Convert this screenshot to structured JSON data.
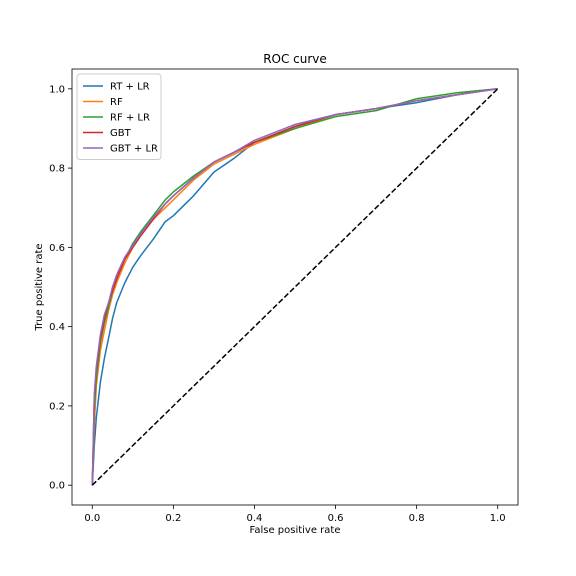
{
  "chart_data": {
    "type": "line",
    "title": "ROC curve",
    "xlabel": "False positive rate",
    "ylabel": "True positive rate",
    "xlim": [
      -0.05,
      1.05
    ],
    "ylim": [
      -0.05,
      1.05
    ],
    "xticks": [
      0.0,
      0.2,
      0.4,
      0.6,
      0.8,
      1.0
    ],
    "yticks": [
      0.0,
      0.2,
      0.4,
      0.6,
      0.8,
      1.0
    ],
    "xtick_labels": [
      "0.0",
      "0.2",
      "0.4",
      "0.6",
      "0.8",
      "1.0"
    ],
    "ytick_labels": [
      "0.0",
      "0.2",
      "0.4",
      "0.6",
      "0.8",
      "1.0"
    ],
    "grid": false,
    "legend_position": "top-left",
    "series": [
      {
        "name": "RT + LR",
        "color": "#1f77b4",
        "x": [
          0.0,
          0.005,
          0.01,
          0.02,
          0.03,
          0.04,
          0.05,
          0.06,
          0.08,
          0.1,
          0.12,
          0.15,
          0.18,
          0.2,
          0.25,
          0.3,
          0.35,
          0.4,
          0.5,
          0.6,
          0.7,
          0.8,
          0.9,
          1.0
        ],
        "y": [
          0.0,
          0.1,
          0.17,
          0.26,
          0.32,
          0.37,
          0.42,
          0.46,
          0.51,
          0.55,
          0.58,
          0.62,
          0.665,
          0.68,
          0.73,
          0.79,
          0.825,
          0.865,
          0.905,
          0.935,
          0.95,
          0.965,
          0.985,
          1.0
        ]
      },
      {
        "name": "RF",
        "color": "#ff7f0e",
        "x": [
          0.0,
          0.005,
          0.01,
          0.02,
          0.03,
          0.04,
          0.05,
          0.06,
          0.08,
          0.1,
          0.12,
          0.15,
          0.18,
          0.2,
          0.25,
          0.3,
          0.35,
          0.4,
          0.5,
          0.6,
          0.7,
          0.8,
          0.9,
          1.0
        ],
        "y": [
          0.0,
          0.15,
          0.25,
          0.34,
          0.39,
          0.44,
          0.48,
          0.51,
          0.56,
          0.6,
          0.63,
          0.67,
          0.7,
          0.72,
          0.77,
          0.81,
          0.835,
          0.86,
          0.9,
          0.935,
          0.95,
          0.97,
          0.985,
          1.0
        ]
      },
      {
        "name": "RF + LR",
        "color": "#2ca02c",
        "x": [
          0.0,
          0.005,
          0.01,
          0.02,
          0.03,
          0.04,
          0.05,
          0.06,
          0.08,
          0.1,
          0.12,
          0.15,
          0.18,
          0.2,
          0.25,
          0.3,
          0.35,
          0.4,
          0.5,
          0.6,
          0.7,
          0.8,
          0.9,
          1.0
        ],
        "y": [
          0.0,
          0.19,
          0.27,
          0.36,
          0.41,
          0.45,
          0.49,
          0.52,
          0.57,
          0.61,
          0.64,
          0.68,
          0.72,
          0.74,
          0.78,
          0.815,
          0.84,
          0.865,
          0.9,
          0.93,
          0.945,
          0.975,
          0.99,
          1.0
        ]
      },
      {
        "name": "GBT",
        "color": "#d62728",
        "x": [
          0.0,
          0.005,
          0.01,
          0.02,
          0.03,
          0.04,
          0.05,
          0.06,
          0.08,
          0.1,
          0.12,
          0.15,
          0.18,
          0.2,
          0.25,
          0.3,
          0.35,
          0.4,
          0.5,
          0.6,
          0.7,
          0.8,
          0.9,
          1.0
        ],
        "y": [
          0.0,
          0.22,
          0.29,
          0.37,
          0.42,
          0.46,
          0.49,
          0.52,
          0.57,
          0.6,
          0.63,
          0.67,
          0.71,
          0.73,
          0.775,
          0.815,
          0.84,
          0.865,
          0.905,
          0.935,
          0.95,
          0.97,
          0.985,
          1.0
        ]
      },
      {
        "name": "GBT + LR",
        "color": "#9467bd",
        "x": [
          0.0,
          0.005,
          0.01,
          0.02,
          0.03,
          0.04,
          0.05,
          0.06,
          0.08,
          0.1,
          0.12,
          0.15,
          0.18,
          0.2,
          0.25,
          0.3,
          0.35,
          0.4,
          0.5,
          0.6,
          0.7,
          0.8,
          0.9,
          1.0
        ],
        "y": [
          0.0,
          0.23,
          0.3,
          0.38,
          0.43,
          0.46,
          0.5,
          0.53,
          0.575,
          0.605,
          0.635,
          0.675,
          0.71,
          0.73,
          0.775,
          0.815,
          0.84,
          0.87,
          0.91,
          0.935,
          0.95,
          0.97,
          0.985,
          1.0
        ]
      }
    ],
    "reference_line": {
      "color": "#000000",
      "style": "dashed",
      "x": [
        0.0,
        1.0
      ],
      "y": [
        0.0,
        1.0
      ]
    }
  }
}
